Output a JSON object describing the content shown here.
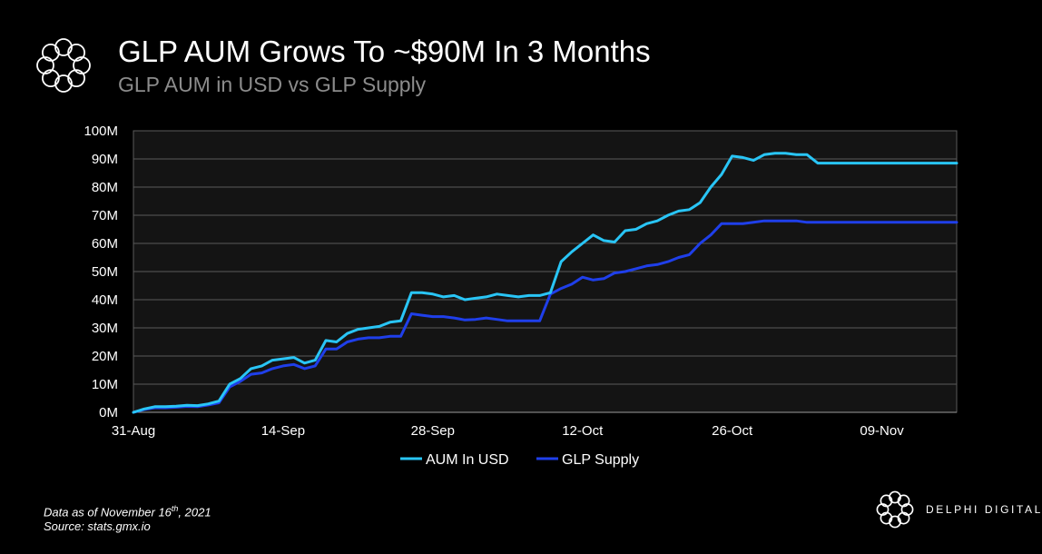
{
  "header": {
    "title": "GLP AUM Grows To ~$90M In 3 Months",
    "subtitle": "GLP AUM in USD vs GLP Supply"
  },
  "footer": {
    "data_as_of_prefix": "Data as of November 16",
    "data_as_of_sup": "th",
    "data_as_of_suffix": ", 2021",
    "source": "Source: stats.gmx.io",
    "brand": "DELPHI DIGITAL"
  },
  "chart_data": {
    "type": "line",
    "title": "GLP AUM Grows To ~$90M In 3 Months",
    "subtitle": "GLP AUM in USD vs GLP Supply",
    "xlabel": "",
    "ylabel": "",
    "ylim": [
      0,
      100
    ],
    "yticks": [
      "0M",
      "10M",
      "20M",
      "30M",
      "40M",
      "50M",
      "60M",
      "70M",
      "80M",
      "90M",
      "100M"
    ],
    "xlim": [
      0,
      77
    ],
    "xticks": [
      {
        "x": 0,
        "label": "31-Aug"
      },
      {
        "x": 14,
        "label": "14-Sep"
      },
      {
        "x": 28,
        "label": "28-Sep"
      },
      {
        "x": 42,
        "label": "12-Oct"
      },
      {
        "x": 56,
        "label": "26-Oct"
      },
      {
        "x": 70,
        "label": "09-Nov"
      }
    ],
    "grid": true,
    "legend": "bottom-center",
    "x": [
      0,
      1,
      2,
      3,
      4,
      5,
      6,
      7,
      8,
      9,
      10,
      11,
      12,
      13,
      14,
      15,
      16,
      17,
      18,
      19,
      20,
      21,
      22,
      23,
      24,
      25,
      26,
      27,
      28,
      29,
      30,
      31,
      32,
      33,
      34,
      35,
      36,
      37,
      38,
      39,
      40,
      41,
      42,
      43,
      44,
      45,
      46,
      47,
      48,
      49,
      50,
      51,
      52,
      53,
      54,
      55,
      56,
      57,
      58,
      59,
      60,
      61,
      62,
      63,
      64,
      65,
      66,
      67,
      68,
      69,
      70,
      71,
      72,
      73,
      74,
      75,
      76,
      77
    ],
    "series": [
      {
        "name": "AUM In USD",
        "color": "#29c5f6",
        "values": [
          0,
          1.2,
          2,
          2,
          2.2,
          2.5,
          2.4,
          3,
          4,
          10,
          12,
          15.5,
          16.5,
          18.5,
          19,
          19.5,
          17.5,
          18.5,
          25.5,
          25,
          28,
          29.5,
          30,
          30.5,
          32,
          32.5,
          42.5,
          42.5,
          42,
          41,
          41.5,
          40,
          40.5,
          41,
          42,
          41.5,
          41,
          41.5,
          41.5,
          42.5,
          53.5,
          57,
          60,
          63,
          61,
          60.5,
          64.5,
          65,
          67,
          68,
          70,
          71.5,
          72,
          74.5,
          80,
          84.5,
          91,
          90.5,
          89.5,
          91.5,
          92,
          92,
          91.5,
          91.5,
          88.5,
          88.5,
          88.5,
          88.5,
          88.5,
          88.5,
          88.5,
          88.5,
          88.5,
          88.5,
          88.5,
          88.5,
          88.5,
          88.5
        ]
      },
      {
        "name": "GLP Supply",
        "color": "#1f3fea",
        "values": [
          0,
          1,
          1.6,
          1.6,
          1.8,
          2.1,
          2,
          2.6,
          3.4,
          9,
          11,
          13.5,
          14,
          15.5,
          16.5,
          17,
          15.5,
          16.5,
          22.5,
          22.5,
          25,
          26,
          26.5,
          26.5,
          27,
          27,
          35,
          34.5,
          34,
          34,
          33.5,
          32.8,
          33,
          33.5,
          33,
          32.5,
          32.5,
          32.5,
          32.5,
          42,
          44,
          45.5,
          48,
          47,
          47.5,
          49.5,
          50,
          51,
          52,
          52.5,
          53.5,
          55,
          56,
          60,
          63,
          67,
          67,
          67,
          67.5,
          68,
          68,
          68,
          68,
          67.5,
          67.5,
          67.5,
          67.5,
          67.5,
          67.5,
          67.5,
          67.5,
          67.5,
          67.5,
          67.5,
          67.5,
          67.5,
          67.5,
          67.5
        ]
      }
    ]
  }
}
